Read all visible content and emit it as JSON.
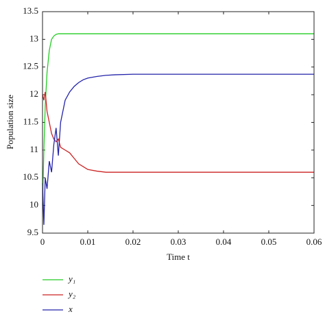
{
  "chart_data": {
    "type": "line",
    "xlabel": "Time t",
    "ylabel": "Population size",
    "x": [
      0,
      0.0003,
      0.0006,
      0.001,
      0.0015,
      0.002,
      0.0025,
      0.003,
      0.0035,
      0.004,
      0.005,
      0.006,
      0.007,
      0.008,
      0.009,
      0.01,
      0.012,
      0.014,
      0.016,
      0.02,
      0.03,
      0.04,
      0.05,
      0.06
    ],
    "series": [
      {
        "name": "y₁",
        "color": "#22cc22",
        "values": [
          10.0,
          11.0,
          11.8,
          12.4,
          12.8,
          13.0,
          13.06,
          13.09,
          13.1,
          13.1,
          13.1,
          13.1,
          13.1,
          13.1,
          13.1,
          13.1,
          13.1,
          13.1,
          13.1,
          13.1,
          13.1,
          13.1,
          13.1,
          13.1
        ]
      },
      {
        "name": "y₂",
        "color": "#cc2222",
        "values": [
          12.0,
          11.9,
          12.05,
          11.7,
          11.5,
          11.3,
          11.2,
          11.15,
          11.2,
          11.05,
          11.0,
          10.95,
          10.85,
          10.75,
          10.7,
          10.65,
          10.62,
          10.6,
          10.6,
          10.6,
          10.6,
          10.6,
          10.6,
          10.6
        ]
      },
      {
        "name": "x",
        "color": "#2222aa",
        "values": [
          10.4,
          9.65,
          10.5,
          10.3,
          10.8,
          10.6,
          11.1,
          11.4,
          10.9,
          11.5,
          11.9,
          12.05,
          12.15,
          12.22,
          12.27,
          12.3,
          12.33,
          12.35,
          12.36,
          12.37,
          12.37,
          12.37,
          12.37,
          12.37
        ]
      }
    ],
    "xlim": [
      0,
      0.06
    ],
    "xticks": [
      0,
      0.01,
      0.02,
      0.03,
      0.04,
      0.05,
      0.06
    ],
    "ylim": [
      9.5,
      13.5
    ],
    "yticks": [
      9.5,
      10,
      10.5,
      11,
      11.5,
      12,
      12.5,
      13,
      13.5
    ]
  }
}
